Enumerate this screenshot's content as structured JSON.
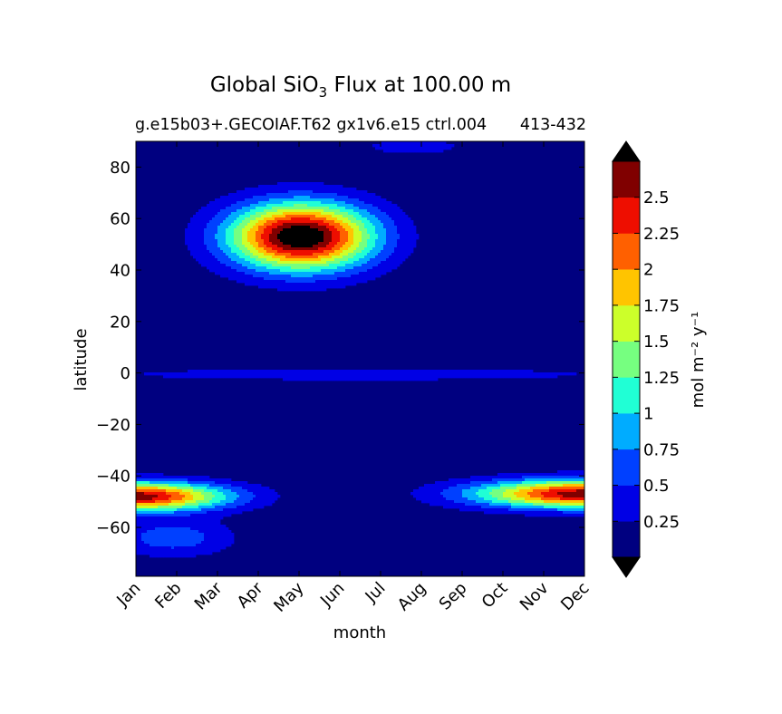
{
  "chart_data": {
    "type": "contourf",
    "title_main": "Global SiO",
    "title_sub_script": "3",
    "title_rest": " Flux at 100.00 m",
    "subtitle_left": "g.e15b03+.GECOIAF.T62 gx1v6.e15 ctrl.004",
    "subtitle_right": "413-432",
    "xlabel": "month",
    "ylabel": "latitude",
    "x_ticks": [
      "Jan",
      "Feb",
      "Mar",
      "Apr",
      "May",
      "Jun",
      "Jul",
      "Aug",
      "Sep",
      "Oct",
      "Nov",
      "Dec"
    ],
    "y_ticks": [
      {
        "value": 80,
        "label": "80"
      },
      {
        "value": 60,
        "label": "60"
      },
      {
        "value": 40,
        "label": "40"
      },
      {
        "value": 20,
        "label": "20"
      },
      {
        "value": 0,
        "label": "0"
      },
      {
        "value": -20,
        "label": "−20"
      },
      {
        "value": -40,
        "label": "−40"
      },
      {
        "value": -60,
        "label": "−60"
      }
    ],
    "ylim": [
      -79,
      90
    ],
    "xlim": [
      0,
      11
    ],
    "colorbar": {
      "label": "mol m⁻² y⁻¹",
      "levels": [
        0,
        0.25,
        0.5,
        0.75,
        1,
        1.25,
        1.5,
        1.75,
        2,
        2.25,
        2.5,
        2.75
      ],
      "tick_labels": [
        "0.25",
        "0.5",
        "0.75",
        "1",
        "1.25",
        "1.5",
        "1.75",
        "2",
        "2.25",
        "2.5"
      ],
      "colors": [
        "#000080",
        "#0000e5",
        "#0040ff",
        "#00acff",
        "#20ffd5",
        "#76ff80",
        "#ccff2a",
        "#ffc400",
        "#ff6000",
        "#ee0e00",
        "#800000"
      ],
      "under_color": "#000000",
      "over_color": "#000000"
    },
    "features": [
      {
        "name": "northern spring bloom",
        "month_center": 4.05,
        "month_half_width": 1.9,
        "lat_center": 53,
        "lat_half_width": 14,
        "peak": 3.0
      },
      {
        "name": "equatorial band",
        "month_center": 5.5,
        "month_half_width": 6.5,
        "lat_center": -0.5,
        "lat_half_width": 2.5,
        "peak": 0.45
      },
      {
        "name": "southern band early year",
        "month_center": 0.0,
        "month_half_width": 2.4,
        "lat_center": -48,
        "lat_half_width": 6,
        "peak": 2.6
      },
      {
        "name": "southern band late year",
        "month_center": 11.0,
        "month_half_width": 2.9,
        "lat_center": -47,
        "lat_half_width": 6,
        "peak": 2.6
      },
      {
        "name": "high southern latitude early year",
        "month_center": 0.9,
        "month_half_width": 1.6,
        "lat_center": -64,
        "lat_half_width": 8,
        "peak": 0.6
      },
      {
        "name": "arctic patch",
        "month_center": 6.8,
        "month_half_width": 1.2,
        "lat_center": 88,
        "lat_half_width": 3,
        "peak": 0.45
      }
    ]
  }
}
